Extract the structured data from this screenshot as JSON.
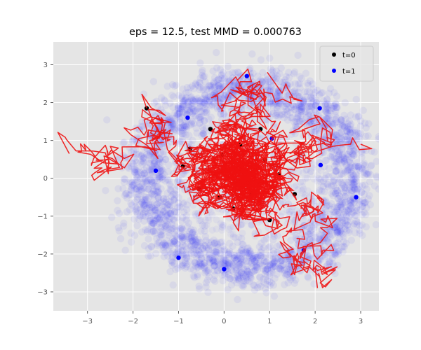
{
  "chart_data": {
    "type": "scatter",
    "title": "eps = 12.5, test MMD = 0.000763",
    "xlabel": "",
    "ylabel": "",
    "xlim": [
      -3.75,
      3.4
    ],
    "ylim": [
      -3.5,
      3.6
    ],
    "xticks": [
      -3,
      -2,
      -1,
      0,
      1,
      2,
      3
    ],
    "yticks": [
      -3,
      -2,
      -1,
      0,
      1,
      2,
      3
    ],
    "grid": true,
    "legend_position": "top-right",
    "colors": {
      "background": "#e5e5e5",
      "grid": "#ffffff",
      "t0": "#000000",
      "t1": "#0000ff",
      "trajectory": "#ee1111"
    },
    "series": [
      {
        "name": "t=0",
        "kind": "scatter",
        "points": [
          [
            -1.7,
            1.85
          ],
          [
            -0.75,
            0.78
          ],
          [
            -0.9,
            0.32
          ],
          [
            -0.55,
            -0.28
          ],
          [
            -0.05,
            0.62
          ],
          [
            0.35,
            0.88
          ],
          [
            0.9,
            0.5
          ],
          [
            1.55,
            -0.42
          ],
          [
            1.0,
            -1.1
          ],
          [
            -0.3,
            1.3
          ],
          [
            0.6,
            -0.4
          ],
          [
            0.2,
            -0.8
          ],
          [
            1.2,
            0.1
          ],
          [
            -0.1,
            -0.5
          ],
          [
            0.8,
            1.3
          ]
        ]
      },
      {
        "name": "t=1",
        "kind": "ring",
        "center": [
          0.55,
          0.0
        ],
        "radii": [
          1.45,
          2.85
        ],
        "main_radius": 2.25,
        "points": [
          [
            2.12,
            0.35
          ],
          [
            1.75,
            -1.9
          ],
          [
            1.05,
            1.05
          ],
          [
            2.1,
            1.85
          ],
          [
            -1.0,
            -2.1
          ],
          [
            0.5,
            2.7
          ],
          [
            -1.5,
            0.2
          ],
          [
            2.9,
            -0.5
          ],
          [
            0.0,
            -2.4
          ],
          [
            -0.8,
            1.6
          ]
        ]
      },
      {
        "name": "trajectories",
        "kind": "line",
        "sample_paths": [
          {
            "start": [
              -1.7,
              1.85
            ],
            "end": [
              0.6,
              -0.9
            ]
          },
          {
            "start": [
              -0.75,
              0.78
            ],
            "end": [
              1.0,
              0.0
            ]
          },
          {
            "start": [
              -0.9,
              0.32
            ],
            "end": [
              0.8,
              -0.6
            ]
          },
          {
            "start": [
              1.55,
              -0.42
            ],
            "end": [
              2.05,
              -2.9
            ]
          },
          {
            "start": [
              1.0,
              -1.1
            ],
            "end": [
              0.3,
              2.6
            ]
          },
          {
            "start": [
              -0.05,
              0.62
            ],
            "end": [
              3.0,
              0.9
            ]
          },
          {
            "start": [
              0.9,
              0.5
            ],
            "end": [
              -3.4,
              0.65
            ]
          },
          {
            "start": [
              -0.55,
              -0.28
            ],
            "end": [
              0.95,
              2.8
            ]
          }
        ]
      }
    ],
    "legend": [
      {
        "label": "t=0",
        "color": "#000000"
      },
      {
        "label": "t=1",
        "color": "#0000ff"
      }
    ]
  }
}
